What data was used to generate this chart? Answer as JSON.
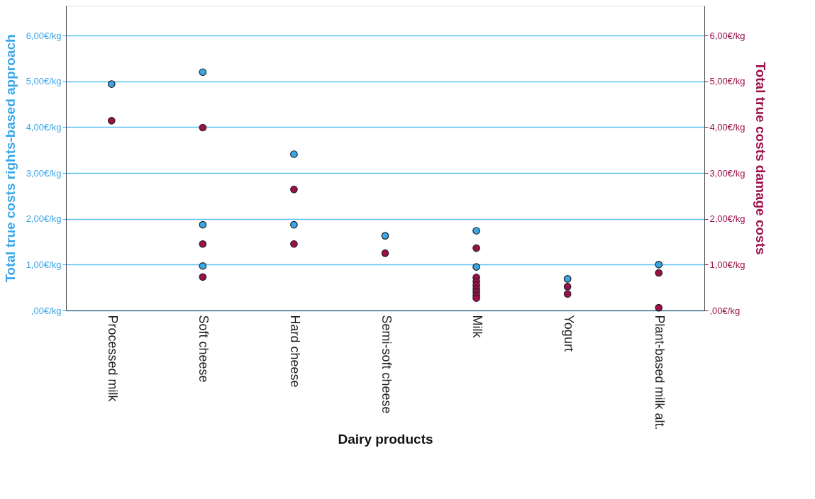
{
  "chart_data": {
    "type": "scatter",
    "xlabel": "Dairy products",
    "ylabel": "Total true costs rights-based approach",
    "y2label": "Total true costs damage costs",
    "categories": [
      "Processed milk",
      "Soft cheese",
      "Hard cheese",
      "Semi-soft cheese",
      "Milk",
      "Yogurt",
      "Plant-based milk alt."
    ],
    "series": [
      {
        "color": "#3aa6e8",
        "x": [
          "Processed milk",
          "Soft cheese",
          "Soft cheese",
          "Soft cheese",
          "Hard cheese",
          "Hard cheese",
          "Semi-soft cheese",
          "Milk",
          "Milk",
          "Yogurt",
          "Plant-based milk alt."
        ],
        "values": [
          4.94,
          5.2,
          1.87,
          0.97,
          3.41,
          1.87,
          1.63,
          1.74,
          0.95,
          0.69,
          1.0
        ]
      },
      {
        "color": "#9b1048",
        "axis": "y2",
        "x": [
          "Processed milk",
          "Soft cheese",
          "Soft cheese",
          "Soft cheese",
          "Hard cheese",
          "Hard cheese",
          "Semi-soft cheese",
          "Milk",
          "Milk",
          "Milk",
          "Milk",
          "Milk",
          "Milk",
          "Milk",
          "Milk",
          "Yogurt",
          "Yogurt",
          "Plant-based milk alt.",
          "Plant-based milk alt."
        ],
        "values": [
          4.14,
          3.99,
          1.45,
          0.73,
          2.64,
          1.45,
          1.25,
          1.36,
          0.72,
          0.63,
          0.55,
          0.47,
          0.4,
          0.33,
          0.27,
          0.52,
          0.36,
          0.82,
          0.06
        ]
      }
    ],
    "ylim": [
      0,
      6.65
    ],
    "y2lim": [
      0,
      6.65
    ],
    "yticks": [
      {
        "value": 0,
        "label": ",00€/kg"
      },
      {
        "value": 1,
        "label": "1,00€/kg"
      },
      {
        "value": 2,
        "label": "2,00€/kg"
      },
      {
        "value": 3,
        "label": "3,00€/kg"
      },
      {
        "value": 4,
        "label": "4,00€/kg"
      },
      {
        "value": 5,
        "label": "5,00€/kg"
      },
      {
        "value": 6,
        "label": "6,00€/kg"
      }
    ],
    "y2ticks": [
      {
        "value": 0,
        "label": ",00€/kg"
      },
      {
        "value": 1,
        "label": "1,00€/kg"
      },
      {
        "value": 2,
        "label": "2,00€/kg"
      },
      {
        "value": 3,
        "label": "3,00€/kg"
      },
      {
        "value": 4,
        "label": "4,00€/kg"
      },
      {
        "value": 5,
        "label": "5,00€/kg"
      },
      {
        "value": 6,
        "label": "6,00€/kg"
      }
    ],
    "grid": "y",
    "marker": "circle"
  }
}
